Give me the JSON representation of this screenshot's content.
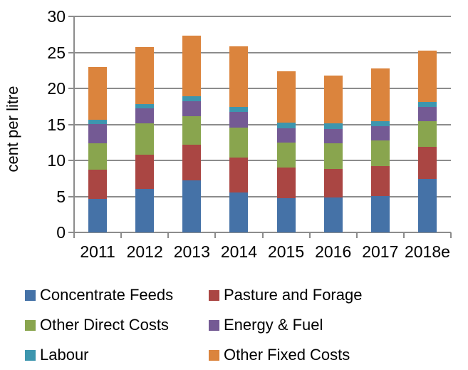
{
  "chart_data": {
    "type": "bar",
    "stacked": true,
    "title": "",
    "xlabel": "",
    "ylabel": "cent per litre",
    "ylim": [
      0,
      30
    ],
    "yticks": [
      0,
      5,
      10,
      15,
      20,
      25,
      30
    ],
    "grid": true,
    "grid_color": "#8C8C8C",
    "axis_color": "#8C8C8C",
    "text_color": "#000000",
    "legend_position": "bottom",
    "categories": [
      "2011",
      "2012",
      "2013",
      "2014",
      "2015",
      "2016",
      "2017",
      "2018e"
    ],
    "series": [
      {
        "name": "Concentrate Feeds",
        "color": "#4572A7",
        "values": [
          4.6,
          6.0,
          7.2,
          5.5,
          4.7,
          4.8,
          5.0,
          7.4
        ]
      },
      {
        "name": "Pasture and Forage",
        "color": "#AA4643",
        "values": [
          4.1,
          4.8,
          5.0,
          4.9,
          4.3,
          4.0,
          4.2,
          4.5
        ]
      },
      {
        "name": "Other Direct Costs",
        "color": "#89A54E",
        "values": [
          3.7,
          4.3,
          3.9,
          4.2,
          3.5,
          3.6,
          3.6,
          3.5
        ]
      },
      {
        "name": "Energy & Fuel",
        "color": "#745A94",
        "values": [
          2.6,
          2.1,
          2.1,
          2.1,
          2.0,
          2.0,
          2.0,
          2.0
        ]
      },
      {
        "name": "Labour",
        "color": "#3D96AE",
        "values": [
          0.6,
          0.6,
          0.7,
          0.7,
          0.7,
          0.7,
          0.6,
          0.7
        ]
      },
      {
        "name": "Other Fixed Costs",
        "color": "#DB843D",
        "values": [
          7.4,
          7.9,
          8.4,
          8.4,
          7.2,
          6.7,
          7.4,
          7.1
        ]
      }
    ],
    "totals": [
      23.0,
      25.7,
      27.3,
      25.8,
      22.4,
      21.8,
      22.8,
      25.2
    ]
  }
}
